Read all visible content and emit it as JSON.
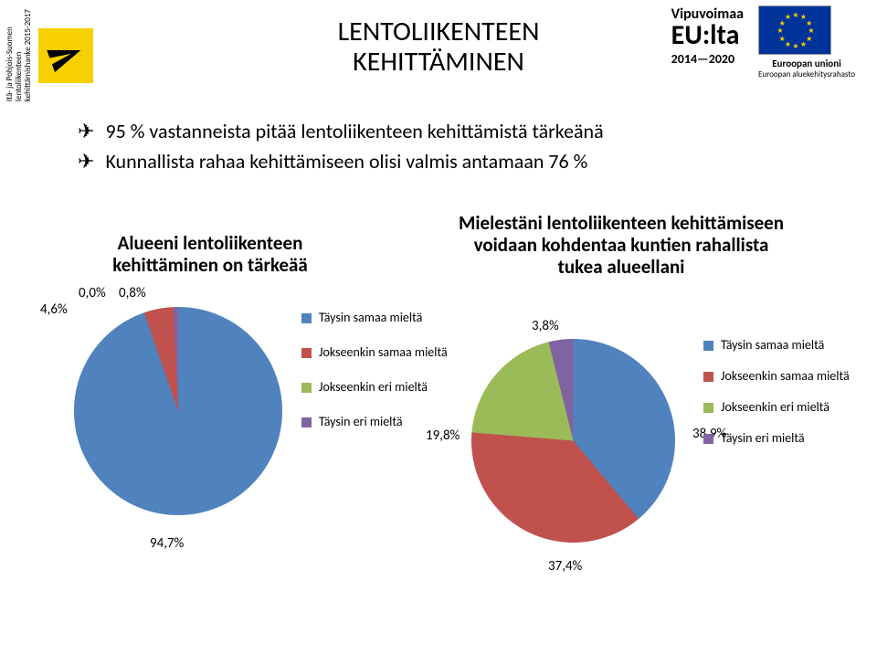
{
  "header": {
    "vertical_label": "Itä- ja Pohjois-Suomen\nlentoliikenteen\nkehittämishanke 2015-2017",
    "eu_line1": "Vipuvoimaa",
    "eu_line2": "EU:lta",
    "eu_line3": "2014—2020",
    "eu_flag_label1": "Euroopan unioni",
    "eu_flag_label2": "Euroopan aluekehitysrahasto"
  },
  "title": {
    "line1": "LENTOLIIKENTEEN",
    "line2": "KEHITTÄMINEN"
  },
  "bullets": [
    "95 % vastanneista pitää lentoliikenteen kehittämistä tärkeänä",
    "Kunnallista rahaa kehittämiseen olisi valmis antamaan 76 %"
  ],
  "chart_left": {
    "title": "Alueeni lentoliikenteen kehittäminen on tärkeää",
    "type": "pie",
    "background_color": "#ffffff",
    "title_fontsize": 21,
    "label_fontsize": 15,
    "slices": [
      {
        "label": "Täysin samaa mieltä",
        "value": 94.7,
        "color": "#5082be",
        "display": "94,7%"
      },
      {
        "label": "Jokseenkin samaa mieltä",
        "value": 4.6,
        "color": "#c0514d",
        "display": "4,6%"
      },
      {
        "label": "Jokseenkin eri mieltä",
        "value": 0.0,
        "color": "#9bbb59",
        "display": "0,0%"
      },
      {
        "label": "Täysin eri mieltä",
        "value": 0.8,
        "color": "#8064a2",
        "display": "0,8%"
      }
    ]
  },
  "chart_right": {
    "title": "Mielestäni lentoliikenteen kehittämiseen voidaan kohdentaa kuntien rahallista tukea alueellani",
    "type": "pie",
    "background_color": "#ffffff",
    "title_fontsize": 21,
    "label_fontsize": 15,
    "slices": [
      {
        "label": "Täysin samaa mieltä",
        "value": 38.9,
        "color": "#5082be",
        "display": "38,9%"
      },
      {
        "label": "Jokseenkin samaa mieltä",
        "value": 37.4,
        "color": "#c0514d",
        "display": "37,4%"
      },
      {
        "label": "Jokseenkin eri mieltä",
        "value": 19.8,
        "color": "#9bbb59",
        "display": "19,8%"
      },
      {
        "label": "Täysin eri mieltä",
        "value": 3.8,
        "color": "#8064a2",
        "display": "3,8%"
      }
    ]
  }
}
